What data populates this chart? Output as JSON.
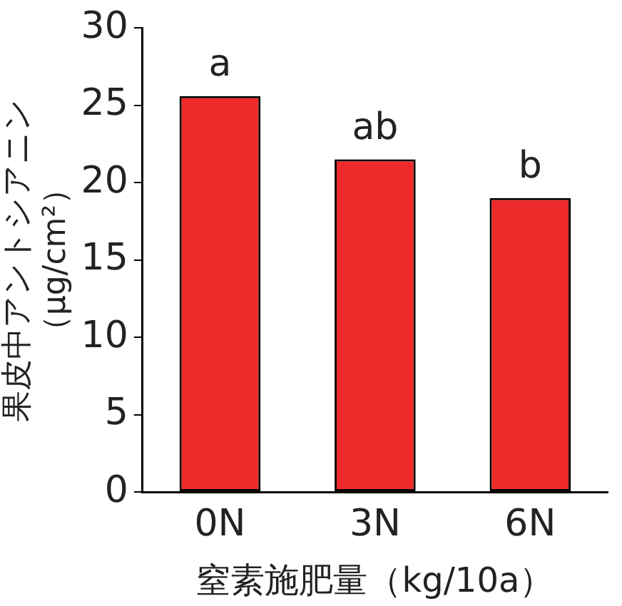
{
  "chart_data": {
    "type": "bar",
    "categories": [
      "0N",
      "3N",
      "6N"
    ],
    "series": [
      {
        "color": "#ee2a2a",
        "values": [
          25.6,
          21.5,
          19.0
        ]
      }
    ],
    "xlabel": "窒素施肥量（kg/10a）",
    "ylabel": "果皮中アントシアニン（μg/cm²）",
    "ylim": [
      0,
      30
    ],
    "yticks": [
      0,
      5,
      10,
      15,
      20,
      25,
      30
    ],
    "grid": false,
    "legend": false,
    "annotations": [
      {
        "text": "a",
        "x": "0N",
        "y": 25.6
      },
      {
        "text": "ab",
        "x": "3N",
        "y": 21.5
      },
      {
        "text": "b",
        "x": "6N",
        "y": 19.0
      }
    ]
  }
}
